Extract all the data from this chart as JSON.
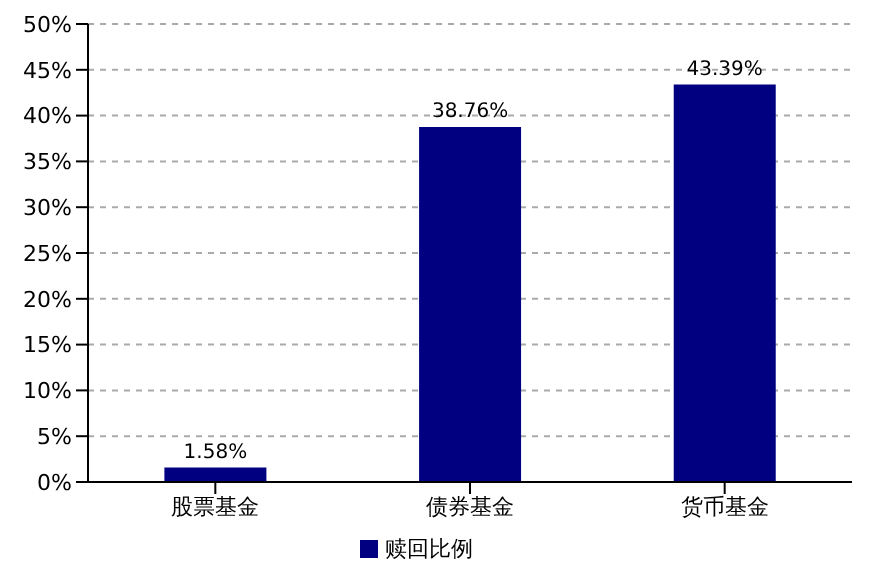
{
  "chart_data": {
    "type": "bar",
    "categories": [
      "股票基金",
      "债券基金",
      "货币基金"
    ],
    "series": [
      {
        "name": "赎回比例",
        "color": "#000080",
        "values": [
          1.58,
          38.76,
          43.39
        ],
        "value_labels": [
          "1.58%",
          "38.76%",
          "43.39%"
        ]
      }
    ],
    "ylim": [
      0,
      50
    ],
    "yticks": [
      {
        "value": 0,
        "label": "0%"
      },
      {
        "value": 5,
        "label": "5%"
      },
      {
        "value": 10,
        "label": "10%"
      },
      {
        "value": 15,
        "label": "15%"
      },
      {
        "value": 20,
        "label": "20%"
      },
      {
        "value": 25,
        "label": "25%"
      },
      {
        "value": 30,
        "label": "30%"
      },
      {
        "value": 35,
        "label": "35%"
      },
      {
        "value": 40,
        "label": "40%"
      },
      {
        "value": 45,
        "label": "45%"
      },
      {
        "value": 50,
        "label": "50%"
      }
    ],
    "grid": "y",
    "legend": "bottom"
  }
}
